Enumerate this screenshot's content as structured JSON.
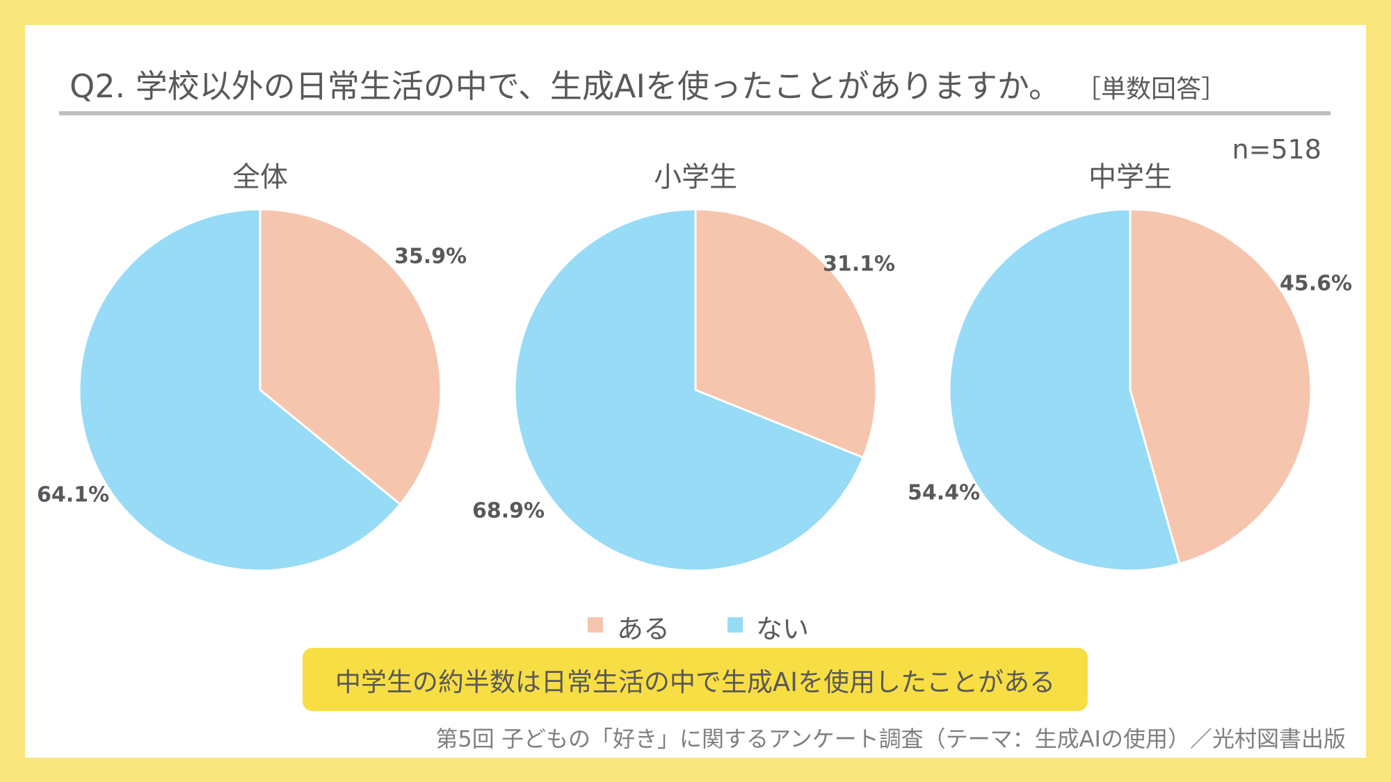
{
  "title": "Q2. 学校以外の日常生活の中で、生成AIを使ったことがありますか。",
  "title_note": "［単数回答］",
  "sample_size": "n=518",
  "chart_data": [
    {
      "type": "pie",
      "title": "全体",
      "categories": [
        "ある",
        "ない"
      ],
      "values": [
        35.9,
        64.1
      ],
      "labels": [
        "35.9%",
        "64.1%"
      ]
    },
    {
      "type": "pie",
      "title": "小学生",
      "categories": [
        "ある",
        "ない"
      ],
      "values": [
        31.1,
        68.9
      ],
      "labels": [
        "31.1%",
        "68.9%"
      ]
    },
    {
      "type": "pie",
      "title": "中学生",
      "categories": [
        "ある",
        "ない"
      ],
      "values": [
        45.6,
        54.4
      ],
      "labels": [
        "45.6%",
        "54.4%"
      ]
    }
  ],
  "legend": [
    {
      "label": "ある",
      "color": "#F6C5AE"
    },
    {
      "label": "ない",
      "color": "#97DBF6"
    }
  ],
  "legend_placement": "bottom",
  "callout": "中学生の約半数は日常生活の中で生成AIを使用したことがある",
  "footer": "第5回 子どもの「好き」に関するアンケート調査（テーマ：生成AIの使用）／光村図書出版",
  "colors": {
    "border": "#F8E67C",
    "callout_bg": "#F8DE45",
    "text": "#595959",
    "rule": "#BFBFBF"
  }
}
